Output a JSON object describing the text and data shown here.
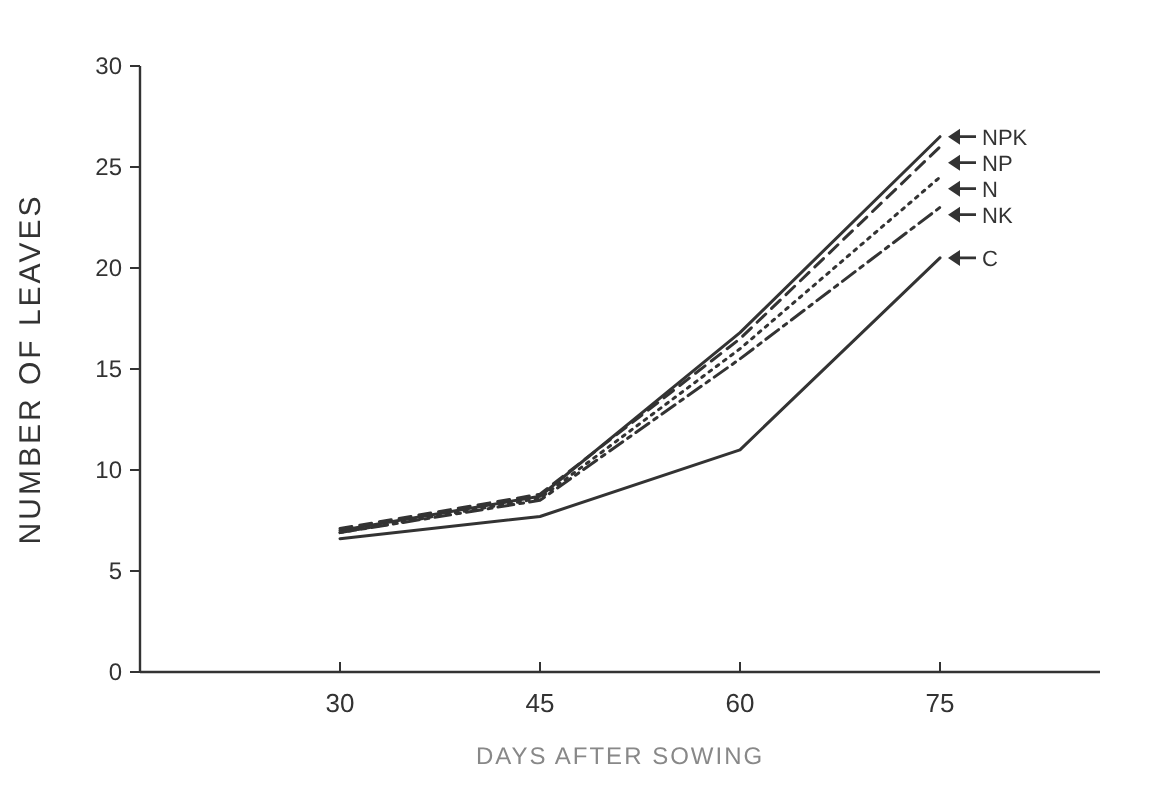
{
  "chart_data": {
    "type": "line",
    "xlabel": "DAYS AFTER SOWING",
    "ylabel": "NUMBER OF LEAVES",
    "x": [
      30,
      45,
      60,
      75
    ],
    "xlim": [
      15,
      87
    ],
    "xticks": [
      30,
      45,
      60,
      75
    ],
    "ylim": [
      0,
      30
    ],
    "yticks": [
      0,
      5,
      10,
      15,
      20,
      25,
      30
    ],
    "grid": false,
    "legend": "right",
    "marker": "none",
    "series": [
      {
        "name": "NPK",
        "color": "#333333",
        "line_style": "solid",
        "values": [
          7.0,
          8.7,
          16.8,
          26.5
        ]
      },
      {
        "name": "NP",
        "color": "#333333",
        "line_style": "dashed",
        "values": [
          7.1,
          8.8,
          16.5,
          26.0
        ]
      },
      {
        "name": "N",
        "color": "#333333",
        "line_style": "dotted",
        "values": [
          6.9,
          8.6,
          16.0,
          24.5
        ]
      },
      {
        "name": "NK",
        "color": "#333333",
        "line_style": "dashdot",
        "values": [
          6.9,
          8.5,
          15.5,
          23.0
        ]
      },
      {
        "name": "C",
        "color": "#333333",
        "line_style": "solid",
        "values": [
          6.6,
          7.7,
          11.0,
          20.5
        ]
      }
    ]
  }
}
